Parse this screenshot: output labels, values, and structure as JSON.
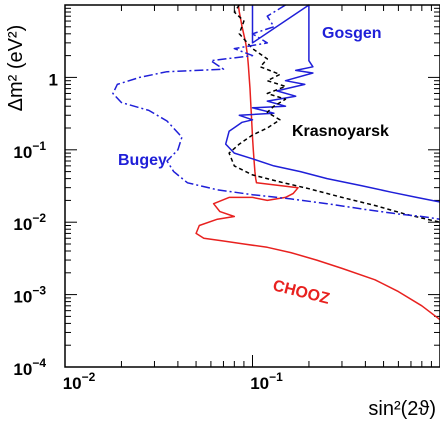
{
  "chart_data": {
    "type": "line",
    "xscale": "log",
    "yscale": "log",
    "xlim": [
      0.01,
      1.0
    ],
    "ylim": [
      0.0001,
      10
    ],
    "xlabel": "sin²(2ϑ)",
    "ylabel": "Δm² (eV²)",
    "x_ticks": [
      {
        "value": 0.01,
        "base": "10",
        "exp": "−2"
      },
      {
        "value": 0.1,
        "base": "10",
        "exp": "−1"
      }
    ],
    "y_ticks": [
      {
        "value": 0.0001,
        "base": "10",
        "exp": "−4"
      },
      {
        "value": 0.001,
        "base": "10",
        "exp": "−3"
      },
      {
        "value": 0.01,
        "base": "10",
        "exp": "−2"
      },
      {
        "value": 0.1,
        "base": "10",
        "exp": "−1"
      },
      {
        "value": 1,
        "base": "1",
        "exp": ""
      }
    ],
    "series": [
      {
        "name": "CHOOZ",
        "color": "#e8211f",
        "dash": "solid",
        "label_position": "below-right",
        "x": [
          0.084,
          0.085,
          0.088,
          0.092,
          0.094,
          0.095,
          0.096,
          0.097,
          0.098,
          0.099,
          0.1,
          0.101,
          0.102,
          0.103,
          0.104,
          0.105,
          0.175,
          0.165,
          0.15,
          0.12,
          0.1,
          0.075,
          0.062,
          0.067,
          0.08,
          0.065,
          0.052,
          0.05,
          0.055,
          0.07,
          0.09,
          0.12,
          0.16,
          0.22,
          0.3,
          0.45,
          0.6,
          0.8,
          1.0
        ],
        "y": [
          10,
          8,
          5,
          3,
          2,
          1.5,
          1,
          0.7,
          0.4,
          0.25,
          0.15,
          0.1,
          0.07,
          0.05,
          0.04,
          0.035,
          0.03,
          0.025,
          0.022,
          0.02,
          0.022,
          0.022,
          0.018,
          0.014,
          0.012,
          0.011,
          0.009,
          0.007,
          0.006,
          0.0055,
          0.005,
          0.0045,
          0.0038,
          0.003,
          0.0023,
          0.0016,
          0.0011,
          0.0007,
          0.00045
        ]
      },
      {
        "name": "Gosgen",
        "color": "#1f1fd8",
        "dash": "solid",
        "label_position": "top-right",
        "x": [
          0.1,
          0.1,
          0.2,
          0.2,
          0.21,
          0.17,
          0.21,
          0.15,
          0.19,
          0.135,
          0.17,
          0.12,
          0.15,
          0.1,
          0.13,
          0.085,
          0.1,
          0.088,
          0.075,
          0.072,
          0.08,
          0.1,
          0.13,
          0.18,
          0.25,
          0.38,
          0.55,
          0.75,
          1.0
        ],
        "y": [
          10,
          3,
          10,
          1.7,
          1.4,
          1.25,
          1.15,
          0.9,
          0.8,
          0.65,
          0.55,
          0.47,
          0.4,
          0.38,
          0.32,
          0.3,
          0.26,
          0.24,
          0.18,
          0.12,
          0.09,
          0.075,
          0.06,
          0.05,
          0.04,
          0.032,
          0.026,
          0.022,
          0.019
        ]
      },
      {
        "name": "Krasnoyarsk",
        "color": "#000000",
        "dash": "4,3",
        "label_position": "middle-right",
        "x": [
          0.085,
          0.08,
          0.09,
          0.085,
          0.1,
          0.12,
          0.11,
          0.14,
          0.12,
          0.15,
          0.12,
          0.15,
          0.13,
          0.12,
          0.14,
          0.12,
          0.1,
          0.085,
          0.075,
          0.08,
          0.1,
          0.14,
          0.2,
          0.3,
          0.45,
          0.65,
          0.85,
          1.0
        ],
        "y": [
          10,
          8,
          6,
          4,
          2.5,
          1.8,
          1.4,
          1.1,
          0.9,
          0.75,
          0.6,
          0.5,
          0.4,
          0.33,
          0.26,
          0.2,
          0.16,
          0.12,
          0.09,
          0.06,
          0.045,
          0.036,
          0.029,
          0.022,
          0.017,
          0.013,
          0.011,
          0.01
        ]
      },
      {
        "name": "Bugey",
        "color": "#1f1fd8",
        "dash": "9,3,2,3",
        "label_position": "middle-left",
        "x": [
          0.15,
          0.12,
          0.13,
          0.1,
          0.12,
          0.08,
          0.1,
          0.06,
          0.07,
          0.035,
          0.025,
          0.019,
          0.018,
          0.02,
          0.028,
          0.035,
          0.042,
          0.04,
          0.035,
          0.038,
          0.045,
          0.065,
          0.1,
          0.16,
          0.25,
          0.4,
          0.6,
          0.8,
          1.0
        ],
        "y": [
          10,
          7,
          5,
          4,
          3,
          2.5,
          2,
          1.7,
          1.3,
          1.2,
          1.0,
          0.8,
          0.6,
          0.45,
          0.35,
          0.25,
          0.15,
          0.1,
          0.07,
          0.05,
          0.035,
          0.028,
          0.024,
          0.021,
          0.018,
          0.015,
          0.013,
          0.012,
          0.011
        ]
      }
    ]
  }
}
